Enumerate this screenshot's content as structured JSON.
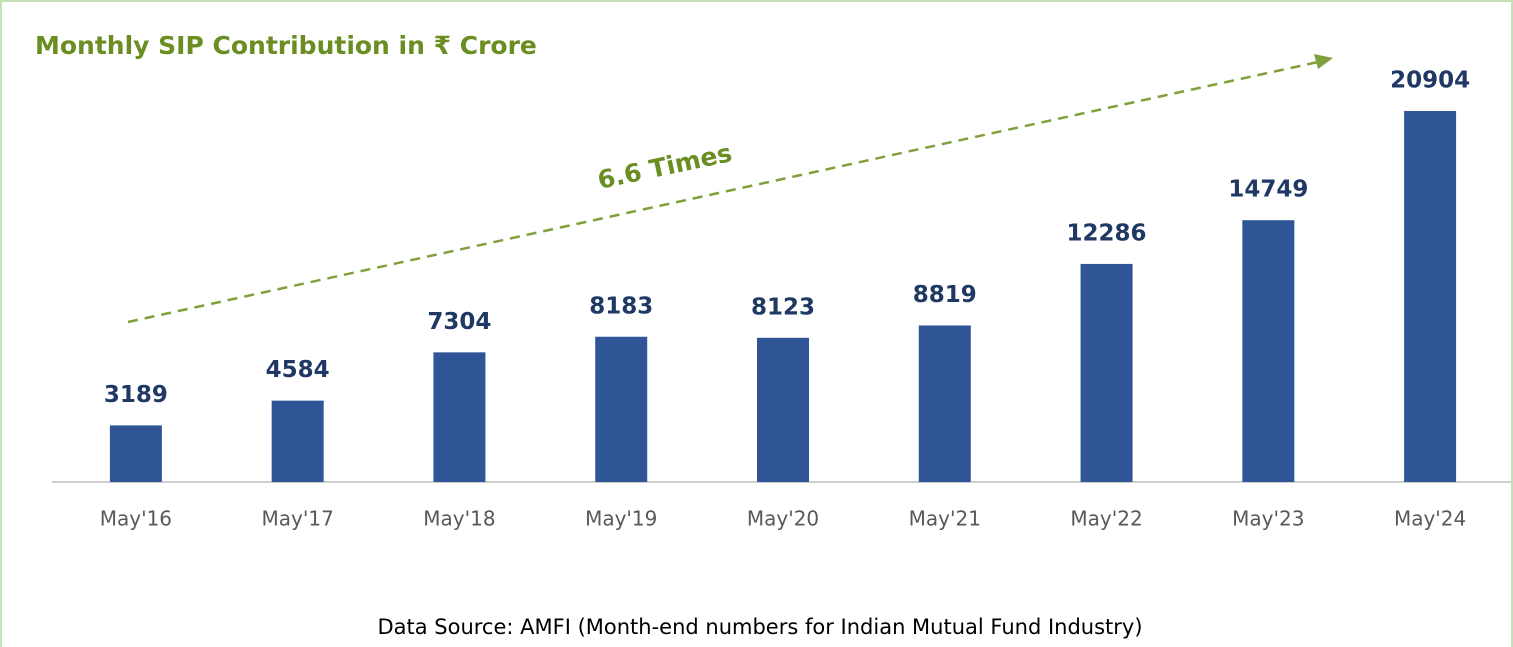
{
  "chart_data": {
    "type": "bar",
    "title": "Monthly SIP Contribution in ₹ Crore",
    "categories": [
      "May'16",
      "May'17",
      "May'18",
      "May'19",
      "May'20",
      "May'21",
      "May'22",
      "May'23",
      "May'24"
    ],
    "values": [
      3189,
      4584,
      7304,
      8183,
      8123,
      8819,
      12286,
      14749,
      20904
    ],
    "color": "#2f5597",
    "ylim": [
      0,
      24000
    ],
    "annotation": "6.6 Times",
    "source": "Data Source: AMFI (Month-end numbers for Indian Mutual Fund Industry)"
  }
}
